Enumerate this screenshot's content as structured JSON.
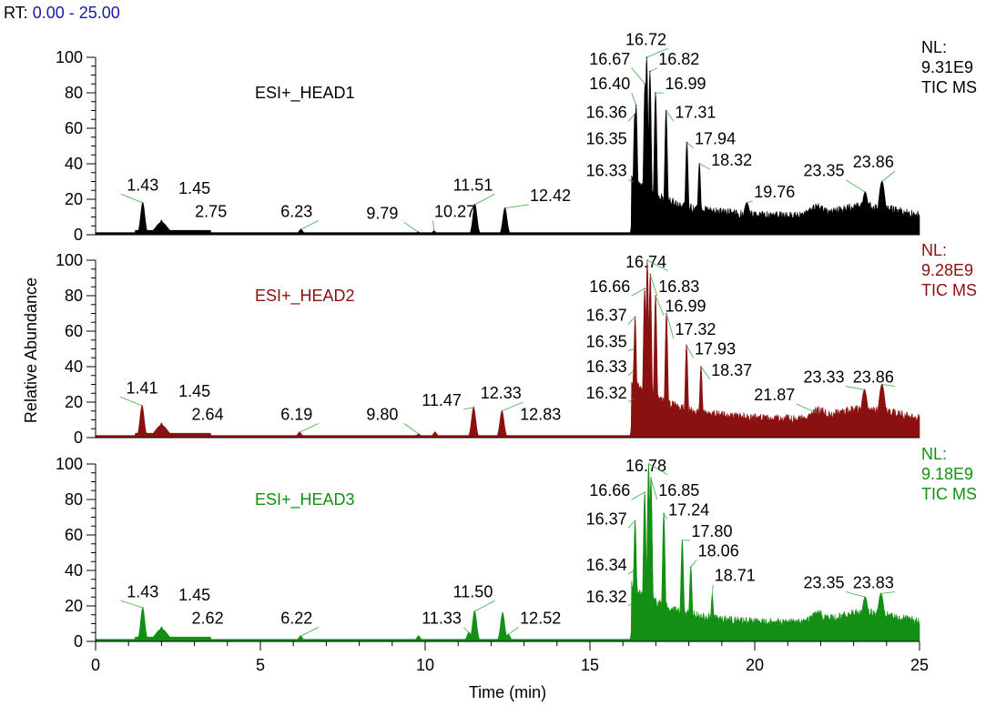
{
  "header": {
    "rt_prefix": "RT:",
    "rt_range": "0.00 - 25.00"
  },
  "chart_data": {
    "type": "area",
    "xlabel": "Time (min)",
    "ylabel": "Relative Abundance",
    "xlim": [
      0,
      25
    ],
    "ylim": [
      0,
      100
    ],
    "x_ticks": [
      0,
      5,
      10,
      15,
      20,
      25
    ],
    "y_ticks": [
      0,
      20,
      40,
      60,
      80,
      100
    ],
    "panels": [
      {
        "name": "ESI+_HEAD1",
        "color": "#000000",
        "nl": [
          "NL:",
          "9.31E9",
          "TIC  MS"
        ],
        "peaks": [
          {
            "x": 1.43,
            "y": 18,
            "label": "1.43"
          },
          {
            "x": 2.0,
            "y": 8
          },
          {
            "x": 6.23,
            "y": 3,
            "label": "6.23"
          },
          {
            "x": 9.79,
            "y": 1.5,
            "label": "9.79"
          },
          {
            "x": 10.27,
            "y": 2,
            "label": "10.27"
          },
          {
            "x": 11.51,
            "y": 17,
            "label": "11.51"
          },
          {
            "x": 12.42,
            "y": 15,
            "label": "12.42"
          },
          {
            "x": 16.33,
            "y": 30,
            "label": "16.33"
          },
          {
            "x": 16.36,
            "y": 68,
            "label": "16.36"
          },
          {
            "x": 16.4,
            "y": 73,
            "label": "16.40"
          },
          {
            "x": 16.67,
            "y": 85,
            "label": "16.67"
          },
          {
            "x": 16.72,
            "y": 100,
            "label": "16.72"
          },
          {
            "x": 16.82,
            "y": 92,
            "label": "16.82"
          },
          {
            "x": 16.99,
            "y": 80,
            "label": "16.99"
          },
          {
            "x": 17.31,
            "y": 70,
            "label": "17.31"
          },
          {
            "x": 17.94,
            "y": 52,
            "label": "17.94"
          },
          {
            "x": 18.32,
            "y": 40,
            "label": "18.32"
          },
          {
            "x": 19.76,
            "y": 18,
            "label": "19.76"
          },
          {
            "x": 21.9,
            "y": 16
          },
          {
            "x": 23.35,
            "y": 24,
            "label": "23.35"
          },
          {
            "x": 23.86,
            "y": 30,
            "label": "23.86"
          }
        ],
        "labels": [
          {
            "text": "1.43",
            "x": 1.43,
            "y": 25
          },
          {
            "text": "1.45",
            "x": 3.0,
            "y": 23
          },
          {
            "text": "2.75",
            "x": 3.5,
            "y": 10
          },
          {
            "text": "6.23",
            "x": 6.1,
            "y": 10
          },
          {
            "text": "9.79",
            "x": 8.7,
            "y": 9
          },
          {
            "text": "10.27",
            "x": 10.9,
            "y": 10
          },
          {
            "text": "11.51",
            "x": 11.45,
            "y": 25
          },
          {
            "text": "12.42",
            "x": 13.8,
            "y": 19
          },
          {
            "text": "16.33",
            "x": 15.5,
            "y": 33
          },
          {
            "text": "16.35",
            "x": 15.5,
            "y": 51
          },
          {
            "text": "16.36",
            "x": 15.5,
            "y": 66
          },
          {
            "text": "16.40",
            "x": 15.6,
            "y": 82
          },
          {
            "text": "16.67",
            "x": 15.6,
            "y": 96
          },
          {
            "text": "16.72",
            "x": 16.7,
            "y": 107
          },
          {
            "text": "16.82",
            "x": 17.7,
            "y": 96
          },
          {
            "text": "16.99",
            "x": 17.9,
            "y": 82
          },
          {
            "text": "17.31",
            "x": 18.2,
            "y": 66
          },
          {
            "text": "17.94",
            "x": 18.8,
            "y": 51
          },
          {
            "text": "18.32",
            "x": 19.3,
            "y": 39
          },
          {
            "text": "19.76",
            "x": 20.6,
            "y": 21
          },
          {
            "text": "23.35",
            "x": 22.1,
            "y": 33
          },
          {
            "text": "23.86",
            "x": 23.6,
            "y": 38
          }
        ]
      },
      {
        "name": "ESI+_HEAD2",
        "color": "#8b1010",
        "nl": [
          "NL:",
          "9.28E9",
          "TIC  MS"
        ],
        "peaks": [
          {
            "x": 1.41,
            "y": 18,
            "label": "1.41"
          },
          {
            "x": 2.0,
            "y": 8
          },
          {
            "x": 6.19,
            "y": 3,
            "label": "6.19"
          },
          {
            "x": 9.8,
            "y": 2,
            "label": "9.80"
          },
          {
            "x": 10.3,
            "y": 3
          },
          {
            "x": 11.47,
            "y": 17,
            "label": "11.47"
          },
          {
            "x": 12.33,
            "y": 15,
            "label": "12.33"
          },
          {
            "x": 16.32,
            "y": 22,
            "label": "16.32"
          },
          {
            "x": 16.33,
            "y": 38,
            "label": "16.33"
          },
          {
            "x": 16.35,
            "y": 50,
            "label": "16.35"
          },
          {
            "x": 16.37,
            "y": 68,
            "label": "16.37"
          },
          {
            "x": 16.66,
            "y": 84,
            "label": "16.66"
          },
          {
            "x": 16.74,
            "y": 100,
            "label": "16.74"
          },
          {
            "x": 16.83,
            "y": 92,
            "label": "16.83"
          },
          {
            "x": 16.99,
            "y": 80,
            "label": "16.99"
          },
          {
            "x": 17.32,
            "y": 70,
            "label": "17.32"
          },
          {
            "x": 17.93,
            "y": 52,
            "label": "17.93"
          },
          {
            "x": 18.37,
            "y": 40,
            "label": "18.37"
          },
          {
            "x": 21.87,
            "y": 14,
            "label": "21.87"
          },
          {
            "x": 23.33,
            "y": 27,
            "label": "23.33"
          },
          {
            "x": 23.86,
            "y": 30,
            "label": "23.86"
          }
        ],
        "labels": [
          {
            "text": "1.41",
            "x": 1.41,
            "y": 25
          },
          {
            "text": "1.45",
            "x": 3.0,
            "y": 23
          },
          {
            "text": "2.64",
            "x": 3.4,
            "y": 10
          },
          {
            "text": "6.19",
            "x": 6.1,
            "y": 10
          },
          {
            "text": "9.80",
            "x": 8.7,
            "y": 10
          },
          {
            "text": "11.47",
            "x": 10.5,
            "y": 18
          },
          {
            "text": "12.33",
            "x": 12.3,
            "y": 22
          },
          {
            "text": "12.83",
            "x": 13.5,
            "y": 10
          },
          {
            "text": "16.32",
            "x": 15.5,
            "y": 22
          },
          {
            "text": "16.33",
            "x": 15.5,
            "y": 37
          },
          {
            "text": "16.35",
            "x": 15.5,
            "y": 51
          },
          {
            "text": "16.37",
            "x": 15.5,
            "y": 66
          },
          {
            "text": "16.66",
            "x": 15.6,
            "y": 82
          },
          {
            "text": "16.74",
            "x": 16.7,
            "y": 96
          },
          {
            "text": "16.83",
            "x": 17.7,
            "y": 82
          },
          {
            "text": "16.99",
            "x": 17.9,
            "y": 71
          },
          {
            "text": "17.32",
            "x": 18.2,
            "y": 58
          },
          {
            "text": "17.93",
            "x": 18.8,
            "y": 47
          },
          {
            "text": "18.37",
            "x": 19.3,
            "y": 35
          },
          {
            "text": "21.87",
            "x": 20.6,
            "y": 21
          },
          {
            "text": "23.33",
            "x": 22.1,
            "y": 31
          },
          {
            "text": "23.86",
            "x": 23.6,
            "y": 31
          }
        ]
      },
      {
        "name": "ESI+_HEAD3",
        "color": "#138f13",
        "nl": [
          "NL:",
          "9.18E9",
          "TIC  MS"
        ],
        "peaks": [
          {
            "x": 1.43,
            "y": 19,
            "label": "1.43"
          },
          {
            "x": 2.0,
            "y": 8
          },
          {
            "x": 6.22,
            "y": 3,
            "label": "6.22"
          },
          {
            "x": 9.8,
            "y": 3
          },
          {
            "x": 11.33,
            "y": 5,
            "label": "11.33"
          },
          {
            "x": 11.5,
            "y": 17,
            "label": "11.50"
          },
          {
            "x": 12.35,
            "y": 16
          },
          {
            "x": 12.52,
            "y": 4,
            "label": "12.52"
          },
          {
            "x": 16.32,
            "y": 22,
            "label": "16.32"
          },
          {
            "x": 16.34,
            "y": 40,
            "label": "16.34"
          },
          {
            "x": 16.37,
            "y": 68,
            "label": "16.37"
          },
          {
            "x": 16.66,
            "y": 84,
            "label": "16.66"
          },
          {
            "x": 16.78,
            "y": 100,
            "label": "16.78"
          },
          {
            "x": 16.85,
            "y": 92,
            "label": "16.85"
          },
          {
            "x": 17.24,
            "y": 72,
            "label": "17.24"
          },
          {
            "x": 17.8,
            "y": 57,
            "label": "17.80"
          },
          {
            "x": 18.06,
            "y": 42,
            "label": "18.06"
          },
          {
            "x": 18.71,
            "y": 26,
            "label": "18.71"
          },
          {
            "x": 21.9,
            "y": 14
          },
          {
            "x": 23.35,
            "y": 25,
            "label": "23.35"
          },
          {
            "x": 23.83,
            "y": 27,
            "label": "23.83"
          }
        ],
        "labels": [
          {
            "text": "1.43",
            "x": 1.43,
            "y": 25
          },
          {
            "text": "1.45",
            "x": 3.0,
            "y": 23
          },
          {
            "text": "2.62",
            "x": 3.4,
            "y": 10
          },
          {
            "text": "6.22",
            "x": 6.1,
            "y": 10
          },
          {
            "text": "11.33",
            "x": 10.5,
            "y": 10
          },
          {
            "text": "11.50",
            "x": 11.45,
            "y": 25
          },
          {
            "text": "12.52",
            "x": 13.5,
            "y": 10
          },
          {
            "text": "16.32",
            "x": 15.5,
            "y": 22
          },
          {
            "text": "16.34",
            "x": 15.5,
            "y": 40
          },
          {
            "text": "16.37",
            "x": 15.5,
            "y": 66
          },
          {
            "text": "16.66",
            "x": 15.6,
            "y": 82
          },
          {
            "text": "16.78",
            "x": 16.7,
            "y": 96
          },
          {
            "text": "16.85",
            "x": 17.7,
            "y": 82
          },
          {
            "text": "17.24",
            "x": 18.0,
            "y": 71
          },
          {
            "text": "17.80",
            "x": 18.7,
            "y": 59
          },
          {
            "text": "18.06",
            "x": 18.9,
            "y": 48
          },
          {
            "text": "18.71",
            "x": 19.4,
            "y": 34
          },
          {
            "text": "23.35",
            "x": 22.1,
            "y": 30
          },
          {
            "text": "23.83",
            "x": 23.6,
            "y": 30
          }
        ]
      }
    ]
  }
}
